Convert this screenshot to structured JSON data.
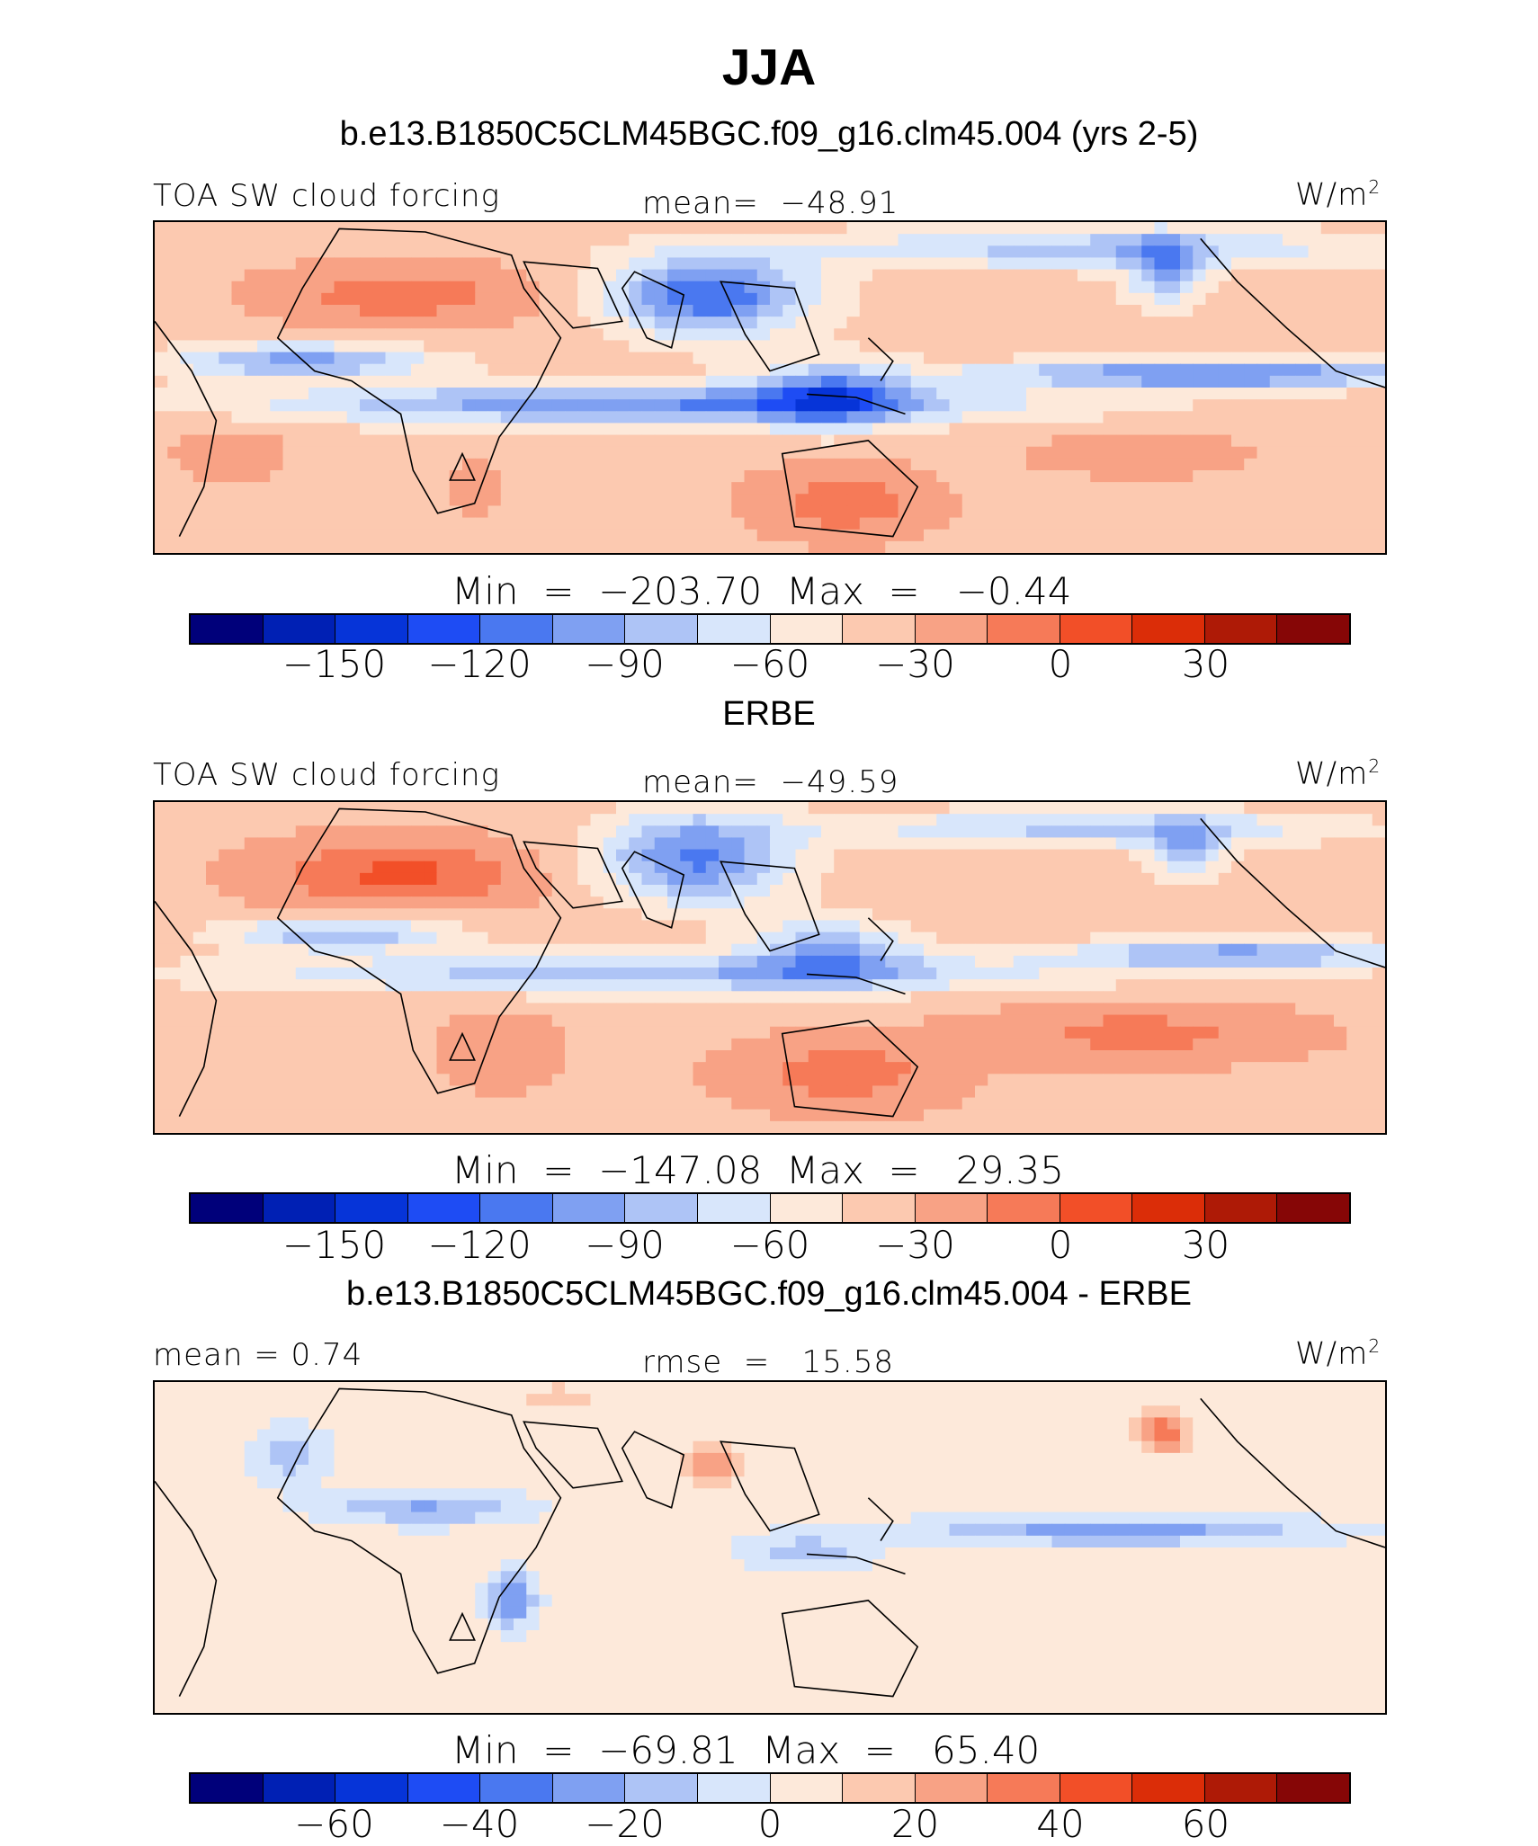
{
  "title": "JJA",
  "panels": [
    {
      "subtitle": "b.e13.B1850C5CLM45BGC.f09_g16.clm45.004 (yrs 2-5)",
      "left_label": "TOA SW cloud forcing",
      "center_label": "mean=  −48.91",
      "units": "W/m",
      "units_sup": "2",
      "minmax": "Min  =  −203.70  Max  =   −0.44",
      "ticks": [
        "−150",
        "−120",
        "−90",
        "−60",
        "−30",
        "0",
        "30"
      ],
      "field": "model"
    },
    {
      "subtitle": "ERBE",
      "left_label": "TOA SW cloud forcing",
      "center_label": "mean=  −49.59",
      "units": "W/m",
      "units_sup": "2",
      "minmax": "Min  =  −147.08  Max  =   29.35",
      "ticks": [
        "−150",
        "−120",
        "−90",
        "−60",
        "−30",
        "0",
        "30"
      ],
      "field": "obs"
    },
    {
      "subtitle": "b.e13.B1850C5CLM45BGC.f09_g16.clm45.004 - ERBE",
      "left_label": "mean  =    0.74",
      "center_label": "rmse  =   15.58",
      "units": "W/m",
      "units_sup": "2",
      "minmax": "Min  =  −69.81  Max  =   65.40",
      "ticks": [
        "−60",
        "−40",
        "−20",
        "0",
        "20",
        "40",
        "60"
      ],
      "field": "diff"
    }
  ],
  "colorbar_colors": [
    "#00007a",
    "#0020b4",
    "#0634d8",
    "#1e4cf4",
    "#4a78f0",
    "#7fa0f2",
    "#aec4f6",
    "#d8e6fb",
    "#fde9da",
    "#fcc9b0",
    "#f8a285",
    "#f67a58",
    "#f24f28",
    "#db2d08",
    "#ae1a06",
    "#860606"
  ]
}
